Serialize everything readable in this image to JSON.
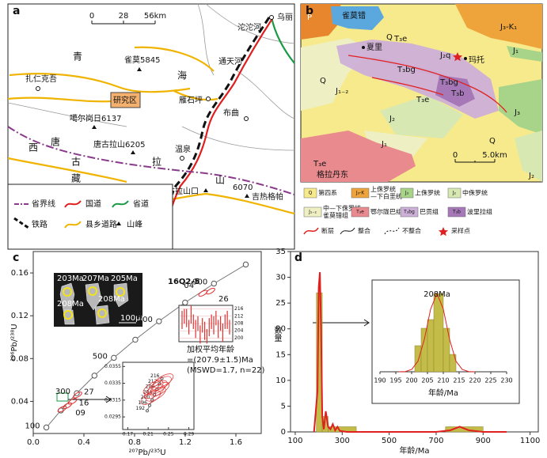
{
  "panel_a": {
    "label": "a",
    "scale": [
      0,
      28,
      "56km"
    ],
    "places": [
      "乌丽",
      "沱沱河",
      "青",
      "雀莫5845",
      "海",
      "通天河",
      "扎仁克吾",
      "研究区",
      "雁石坪",
      "布曲",
      "噶尔岗日6137",
      "唐古拉山6205",
      "西",
      "唐",
      "古",
      "拉",
      "藏",
      "温泉",
      "山",
      "岗尼",
      "唐古拉山口",
      "吉热格帕",
      6070
    ],
    "legend": [
      "省界线",
      "国道",
      "省道",
      "铁路",
      "县乡道路",
      "山峰"
    ]
  },
  "panel_b": {
    "label": "b",
    "map_labels": [
      "P",
      "雀莫错",
      "Q",
      "J₃-K₁",
      "T₃e",
      "J₂q",
      "玛托",
      "J₁",
      "夏里",
      "T₃bg",
      "J₁₋₂",
      "T₃bg",
      "T₃b",
      "T₃e",
      "J₂",
      "J₃",
      "Q",
      "Q",
      "J₁",
      "T₃e",
      "格拉丹东",
      "J₂"
    ],
    "scale": [
      0,
      "5.0km"
    ],
    "legend": [
      {
        "symbol": "Q",
        "text": [
          "第四系"
        ],
        "color": "#f6ea8c"
      },
      {
        "symbol": "J₃-K",
        "text": [
          "上侏罗统",
          "—下白垩统"
        ],
        "color": "#eea43a"
      },
      {
        "symbol": "J₃",
        "text": [
          "上侏罗统"
        ],
        "color": "#a8d48a"
      },
      {
        "symbol": "J₂",
        "text": [
          "中侏罗统"
        ],
        "color": "#d8e8b2"
      },
      {
        "symbol": "J₁₋₂",
        "text": [
          "中—下侏罗统",
          "雀莫错组"
        ],
        "color": "#eef0c4"
      },
      {
        "symbol": "T₃e",
        "text": [
          "鄂尔陇巴组"
        ],
        "color": "#e98a8e"
      },
      {
        "symbol": "T₃bg",
        "text": [
          "巴贡组"
        ],
        "color": "#cdb0d8"
      },
      {
        "symbol": "T₃b",
        "text": [
          "波里拉组"
        ],
        "color": "#a678b8"
      }
    ],
    "symbols": [
      "断层",
      "整合",
      "不整合",
      "采样点"
    ]
  },
  "chart_data": [
    {
      "type": "concordia",
      "panel": "c",
      "title": "16Q2-5",
      "x_label": "²⁰⁷Pb/²³⁵U",
      "y_label": "²⁰⁶Pb/²³⁸U",
      "xlim": [
        0,
        1.8
      ],
      "ylim": [
        0.01,
        0.18
      ],
      "xticks": [
        {
          "value": 0,
          "label": "0.0"
        },
        0.4,
        0.8,
        1.2,
        1.6
      ],
      "yticks": [
        0.04,
        0.08,
        0.12,
        0.16
      ],
      "concordia": {
        "ages": [
          100,
          200,
          300,
          400,
          500,
          600,
          700,
          800,
          900,
          1000
        ],
        "labels": [
          100,
          null,
          300,
          null,
          500,
          null,
          700,
          null,
          900,
          null
        ],
        "x": [
          0.1035,
          0.2178,
          0.3439,
          0.4831,
          0.6365,
          0.8058,
          0.9927,
          1.199,
          1.4266,
          1.678
        ],
        "y": [
          0.01563,
          0.03151,
          0.04765,
          0.06405,
          0.08071,
          0.09765,
          0.11485,
          0.13233,
          0.1501,
          0.16789
        ]
      },
      "analyses": {
        "x": [
          0.228,
          0.35,
          0.31,
          0.27,
          1.34,
          1.4
        ],
        "y": [
          0.0328,
          0.046,
          0.04,
          0.036,
          0.141,
          0.143
        ],
        "labels": [
          null,
          "27",
          "16",
          "09",
          "04",
          "26"
        ],
        "color": "#e03030"
      },
      "photo": {
        "labels": [
          "203Ma",
          "207Ma",
          "205Ma",
          "208Ma",
          "208Ma"
        ],
        "scale": "100μm"
      },
      "zoom": {
        "xlim": [
          0.16,
          0.3
        ],
        "ylim": [
          0.028,
          0.036
        ],
        "xticks": [
          0.17,
          0.21,
          0.25,
          0.29
        ],
        "yticks": [
          0.0295,
          0.0315,
          0.0335,
          0.0355
        ],
        "concordia": {
          "ages": [
            192,
            196,
            200,
            204,
            208,
            212,
            216
          ],
          "x": [
            0.2082,
            0.2129,
            0.2178,
            0.2225,
            0.2273,
            0.2322,
            0.237
          ],
          "y": [
            0.03023,
            0.03087,
            0.03151,
            0.03215,
            0.03279,
            0.03343,
            0.03407
          ]
        },
        "spots": {
          "x": [
            0.215,
            0.222,
            0.228,
            0.232,
            0.236,
            0.225,
            0.24,
            0.22
          ],
          "y": [
            0.0318,
            0.0325,
            0.033,
            0.0328,
            0.0335,
            0.0322,
            0.0338,
            0.033
          ]
        }
      },
      "weighted_mean": {
        "ylim": [
          198,
          218
        ],
        "yticks": [
          200,
          204,
          208,
          212,
          216
        ],
        "values": [
          210,
          212,
          211,
          206,
          213,
          209,
          205,
          208,
          202,
          207,
          204,
          201,
          206,
          209,
          207,
          211,
          205,
          208,
          203,
          209,
          210,
          206
        ],
        "errors": [
          5,
          4,
          5,
          4,
          5,
          4,
          5,
          4,
          5,
          4,
          5,
          4,
          5,
          4,
          5,
          4,
          5,
          4,
          5,
          4,
          5,
          4
        ],
        "text": [
          "加权平均年龄",
          "=(207.9±1.5)Ma",
          "(MSWD=1.7, n=22)"
        ]
      }
    },
    {
      "type": "histogram",
      "panel": "d",
      "x_label": "年龄/Ma",
      "y_label": "数量",
      "xlim": [
        80,
        1135
      ],
      "ylim": [
        0,
        35
      ],
      "xticks": [
        100,
        300,
        500,
        700,
        900,
        1100
      ],
      "yticks": [
        0,
        5,
        10,
        15,
        20,
        25,
        30,
        35
      ],
      "bins": [
        190,
        215,
        240,
        360,
        740,
        900
      ],
      "counts": [
        27,
        3,
        1,
        0,
        1
      ],
      "color": "#c4bc48",
      "density": {
        "x": [
          180,
          195,
          200,
          205,
          210,
          215,
          222,
          230,
          240,
          250,
          260,
          270,
          280,
          290,
          320,
          400,
          700,
          760,
          800,
          840,
          900,
          1000
        ],
        "y": [
          0,
          8,
          28,
          31,
          20,
          3,
          0.5,
          4,
          1,
          0.5,
          1.5,
          0.3,
          1,
          0.2,
          0,
          0,
          0,
          0.3,
          1,
          0.3,
          0,
          0
        ],
        "color": "#e02020"
      },
      "inset": {
        "label": "208Ma",
        "x_label": "年龄/Ma",
        "xlim": [
          190,
          230
        ],
        "ylim": [
          0,
          10
        ],
        "xticks": [
          190,
          195,
          200,
          205,
          210,
          215,
          220,
          225,
          230
        ],
        "bins": [
          201,
          203,
          205,
          207,
          210,
          212,
          214
        ],
        "counts": [
          3,
          5,
          6,
          9,
          5,
          2
        ],
        "density": {
          "x": [
            196,
            198,
            200,
            202,
            204,
            206,
            208,
            210,
            212,
            214,
            216,
            218,
            220
          ],
          "y": [
            0,
            0.03,
            0.26,
            1.22,
            3.7,
            7.2,
            9,
            7.2,
            3.7,
            1.22,
            0.26,
            0.03,
            0
          ]
        }
      }
    }
  ]
}
